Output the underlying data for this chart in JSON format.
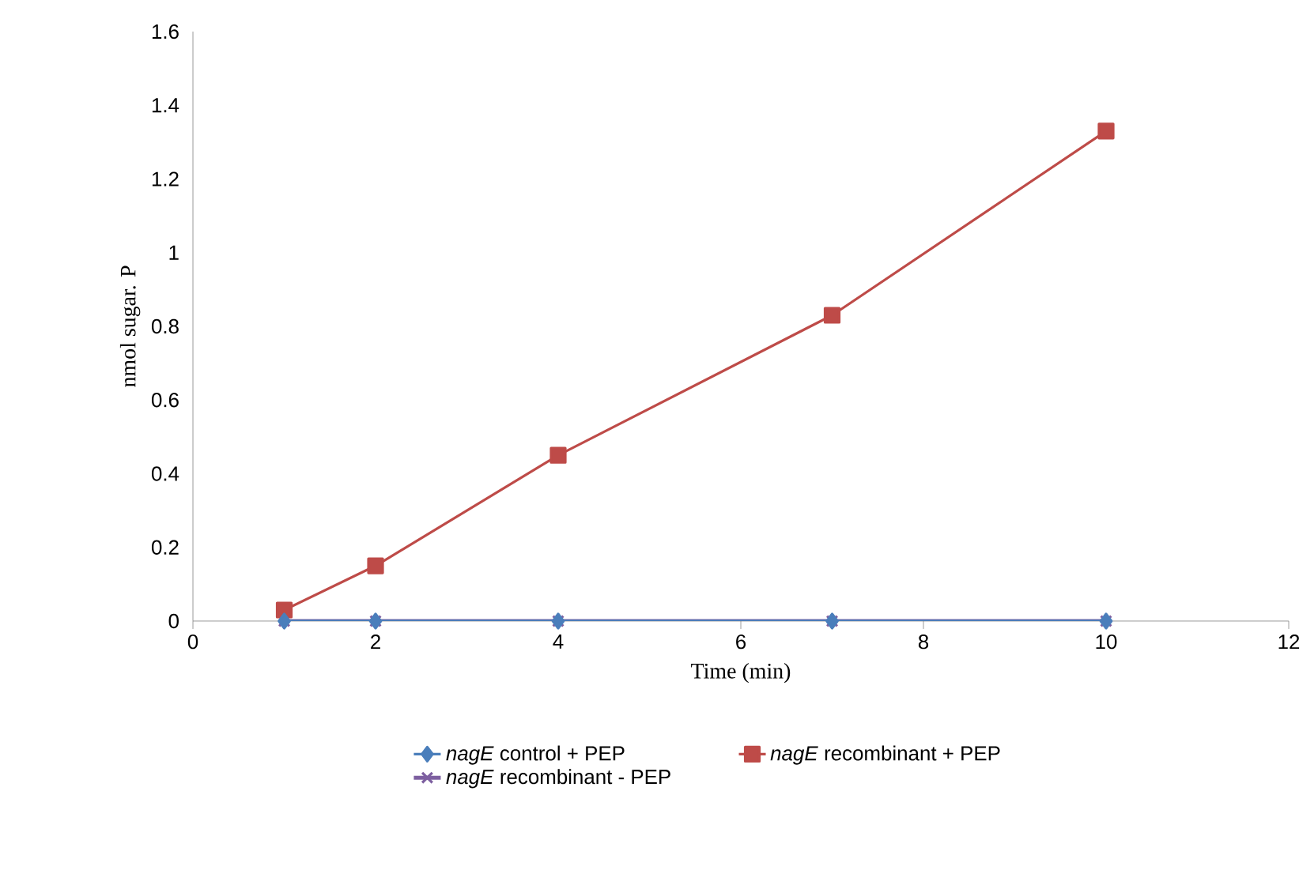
{
  "chart_data": {
    "type": "line",
    "xlabel": "Time (min)",
    "ylabel": "nmol sugar. P",
    "x": [
      1,
      2,
      4,
      7,
      10
    ],
    "series": [
      {
        "name": "*nagE* control + PEP",
        "color": "#4a7ebb",
        "marker": "diamond",
        "values": [
          0,
          0,
          0,
          0,
          0
        ]
      },
      {
        "name": "*nagE* recombinant + PEP",
        "color": "#be4b48",
        "marker": "square",
        "values": [
          0.03,
          0.15,
          0.45,
          0.83,
          1.33
        ]
      },
      {
        "name": "*nagE* recombinant - PEP",
        "color": "#7d5fa0",
        "marker": "cross",
        "values": [
          0,
          0,
          0,
          0,
          0
        ]
      }
    ],
    "xlim": [
      0,
      12
    ],
    "xticks": [
      0,
      2,
      4,
      6,
      8,
      10,
      12
    ],
    "ylim": [
      0,
      1.6
    ],
    "yticks": [
      0,
      0.2,
      0.4,
      0.6,
      0.8,
      1,
      1.2,
      1.4,
      1.6
    ],
    "grid": false,
    "legend": "bottom",
    "line_style": "solid"
  }
}
